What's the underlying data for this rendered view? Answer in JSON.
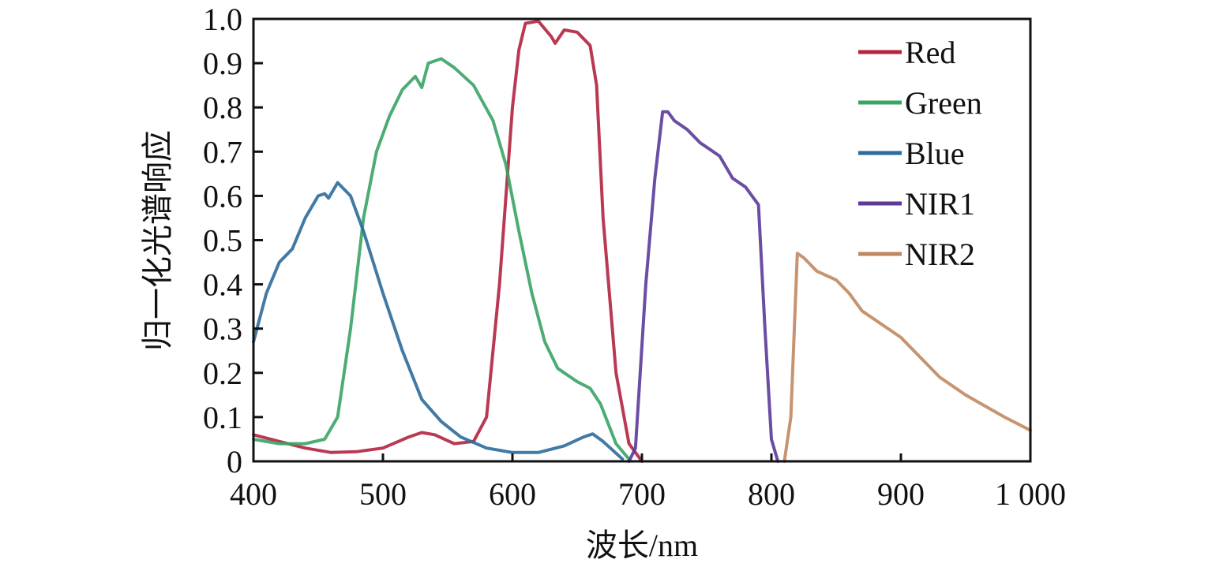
{
  "chart_data": {
    "type": "line",
    "title": "",
    "xlabel": "波长/nm",
    "ylabel": "归一化光谱响应",
    "xlim": [
      400,
      1000
    ],
    "ylim": [
      0,
      1.0
    ],
    "xticks": [
      400,
      500,
      600,
      700,
      800,
      900,
      1000
    ],
    "xtick_labels": [
      "400",
      "500",
      "600",
      "700",
      "800",
      "900",
      "1 000"
    ],
    "yticks": [
      0,
      0.1,
      0.2,
      0.3,
      0.4,
      0.5,
      0.6,
      0.7,
      0.8,
      0.9,
      1.0
    ],
    "ytick_labels": [
      "0",
      "0.1",
      "0.2",
      "0.3",
      "0.4",
      "0.5",
      "0.6",
      "0.7",
      "0.8",
      "0.9",
      "1.0"
    ],
    "grid": false,
    "legend_position": "top-right",
    "series": [
      {
        "name": "Red",
        "color": "#b3243f",
        "x": [
          400,
          420,
          440,
          460,
          480,
          500,
          520,
          530,
          540,
          555,
          570,
          580,
          590,
          600,
          605,
          610,
          620,
          630,
          633,
          640,
          650,
          660,
          665,
          670,
          680,
          690,
          700
        ],
        "y": [
          0.06,
          0.045,
          0.03,
          0.02,
          0.022,
          0.03,
          0.055,
          0.065,
          0.06,
          0.04,
          0.045,
          0.1,
          0.4,
          0.8,
          0.93,
          0.99,
          0.995,
          0.96,
          0.945,
          0.975,
          0.97,
          0.94,
          0.85,
          0.55,
          0.2,
          0.04,
          0.0
        ]
      },
      {
        "name": "Green",
        "color": "#3aa365",
        "x": [
          400,
          420,
          440,
          455,
          465,
          475,
          485,
          495,
          505,
          515,
          525,
          530,
          535,
          545,
          555,
          570,
          585,
          595,
          605,
          615,
          625,
          635,
          650,
          660,
          668,
          680,
          690
        ],
        "y": [
          0.05,
          0.04,
          0.04,
          0.05,
          0.1,
          0.3,
          0.55,
          0.7,
          0.78,
          0.84,
          0.87,
          0.845,
          0.9,
          0.91,
          0.89,
          0.85,
          0.77,
          0.67,
          0.52,
          0.38,
          0.27,
          0.21,
          0.18,
          0.165,
          0.13,
          0.04,
          0.005
        ]
      },
      {
        "name": "Blue",
        "color": "#2c6b9a",
        "x": [
          400,
          410,
          420,
          430,
          440,
          450,
          455,
          458,
          465,
          475,
          485,
          500,
          515,
          530,
          545,
          560,
          580,
          600,
          620,
          640,
          655,
          662,
          670,
          685
        ],
        "y": [
          0.27,
          0.38,
          0.45,
          0.48,
          0.55,
          0.6,
          0.605,
          0.595,
          0.63,
          0.6,
          0.52,
          0.38,
          0.25,
          0.14,
          0.09,
          0.055,
          0.03,
          0.02,
          0.02,
          0.035,
          0.055,
          0.062,
          0.045,
          0.005
        ]
      },
      {
        "name": "NIR1",
        "color": "#5b3a9a",
        "x": [
          690,
          695,
          703,
          710,
          716,
          720,
          725,
          735,
          745,
          760,
          770,
          780,
          785,
          790,
          795,
          800,
          805
        ],
        "y": [
          0.0,
          0.03,
          0.4,
          0.64,
          0.79,
          0.79,
          0.77,
          0.75,
          0.72,
          0.69,
          0.64,
          0.62,
          0.6,
          0.58,
          0.3,
          0.05,
          0.0
        ]
      },
      {
        "name": "NIR2",
        "color": "#c08860",
        "x": [
          810,
          815,
          820,
          825,
          835,
          850,
          860,
          870,
          900,
          930,
          950,
          980,
          1000
        ],
        "y": [
          0.0,
          0.1,
          0.47,
          0.46,
          0.43,
          0.41,
          0.38,
          0.34,
          0.28,
          0.19,
          0.15,
          0.1,
          0.07
        ]
      }
    ]
  }
}
